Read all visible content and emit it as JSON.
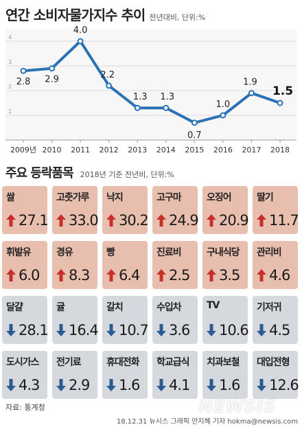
{
  "chart": {
    "title": "연간 소비자물가지수 추이",
    "unit": "전년대비, 단위:%"
  },
  "chart_data": {
    "type": "line",
    "title": "연간 소비자물가지수 추이",
    "subtitle": "전년대비, 단위:%",
    "categories": [
      "2009년",
      "2010",
      "2011",
      "2012",
      "2013",
      "2014",
      "2015",
      "2016",
      "2017",
      "2018"
    ],
    "values": [
      2.8,
      2.9,
      4.0,
      2.2,
      1.3,
      1.3,
      0.7,
      1.0,
      1.9,
      1.5
    ],
    "value_labels": [
      "2.8",
      "2.9",
      "4.0",
      "2.2",
      "1.3",
      "1.3",
      "0.7",
      "1.0",
      "1.9",
      "1.5"
    ],
    "y_ticks": [
      "1",
      "2",
      "3",
      "4"
    ],
    "ylim": [
      0,
      4.5
    ],
    "grid": true,
    "color": "#2a72b5"
  },
  "items_section": {
    "title": "주요 등락품목",
    "subtitle": "2018년 기준 전년비, 단위:%"
  },
  "items": [
    {
      "name": "쌀",
      "value": "27.1",
      "dir": "up"
    },
    {
      "name": "고춧가루",
      "value": "33.0",
      "dir": "up"
    },
    {
      "name": "낙지",
      "value": "30.2",
      "dir": "up"
    },
    {
      "name": "고구마",
      "value": "24.9",
      "dir": "up"
    },
    {
      "name": "오징어",
      "value": "20.9",
      "dir": "up"
    },
    {
      "name": "딸기",
      "value": "11.7",
      "dir": "up"
    },
    {
      "name": "휘발유",
      "value": "6.0",
      "dir": "up"
    },
    {
      "name": "경유",
      "value": "8.3",
      "dir": "up"
    },
    {
      "name": "빵",
      "value": "6.4",
      "dir": "up"
    },
    {
      "name": "진료비",
      "value": "2.5",
      "dir": "up"
    },
    {
      "name": "구내식당",
      "value": "3.5",
      "dir": "up"
    },
    {
      "name": "관리비",
      "value": "4.6",
      "dir": "up"
    },
    {
      "name": "달걀",
      "value": "28.1",
      "dir": "down"
    },
    {
      "name": "귤",
      "value": "16.4",
      "dir": "down"
    },
    {
      "name": "갈치",
      "value": "10.7",
      "dir": "down"
    },
    {
      "name": "수입차",
      "value": "3.6",
      "dir": "down"
    },
    {
      "name": "TV",
      "value": "10.6",
      "dir": "down"
    },
    {
      "name": "기저귀",
      "value": "4.5",
      "dir": "down"
    },
    {
      "name": "도시가스",
      "value": "4.3",
      "dir": "down"
    },
    {
      "name": "전기료",
      "value": "2.9",
      "dir": "down"
    },
    {
      "name": "휴대전화",
      "value": "1.6",
      "dir": "down"
    },
    {
      "name": "학교급식",
      "value": "4.1",
      "dir": "down"
    },
    {
      "name": "치과보철",
      "value": "1.6",
      "dir": "down"
    },
    {
      "name": "대입전형",
      "value": "12.6",
      "dir": "down"
    }
  ],
  "colors": {
    "up_bg": "#e8bfae",
    "down_bg": "#d5d9de",
    "up_arrow": "#c7302a",
    "down_arrow": "#2a5c93",
    "line": "#2a72b5"
  },
  "icons": {
    "up": "arrow-up-icon",
    "down": "arrow-down-icon"
  },
  "footer": {
    "source": "자료: 통계청",
    "credit": "18.12.31 뉴시스 그래픽 안지혜 기자 hokma@newsis.com",
    "watermark": "NEWSIS"
  }
}
